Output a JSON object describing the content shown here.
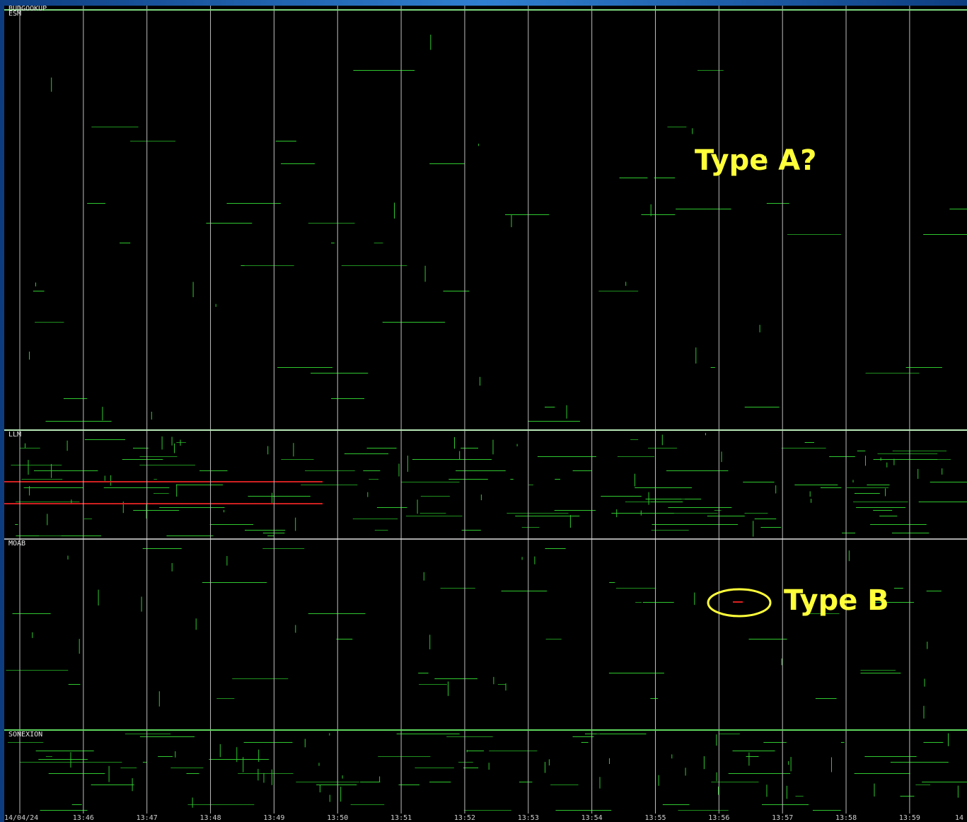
{
  "panel_labels": [
    "BUDGOOKUP",
    "ESM",
    "LLM",
    "MOAB",
    "SONEXION"
  ],
  "time_labels": [
    "14/04/24",
    "13:46",
    "13:47",
    "13:48",
    "13:49",
    "13:50",
    "13:51",
    "13:52",
    "13:53",
    "13:54",
    "13:55",
    "13:56",
    "13:57",
    "13:58",
    "13:59",
    "14"
  ],
  "annotations": [
    "Type A?",
    "Type B"
  ]
}
